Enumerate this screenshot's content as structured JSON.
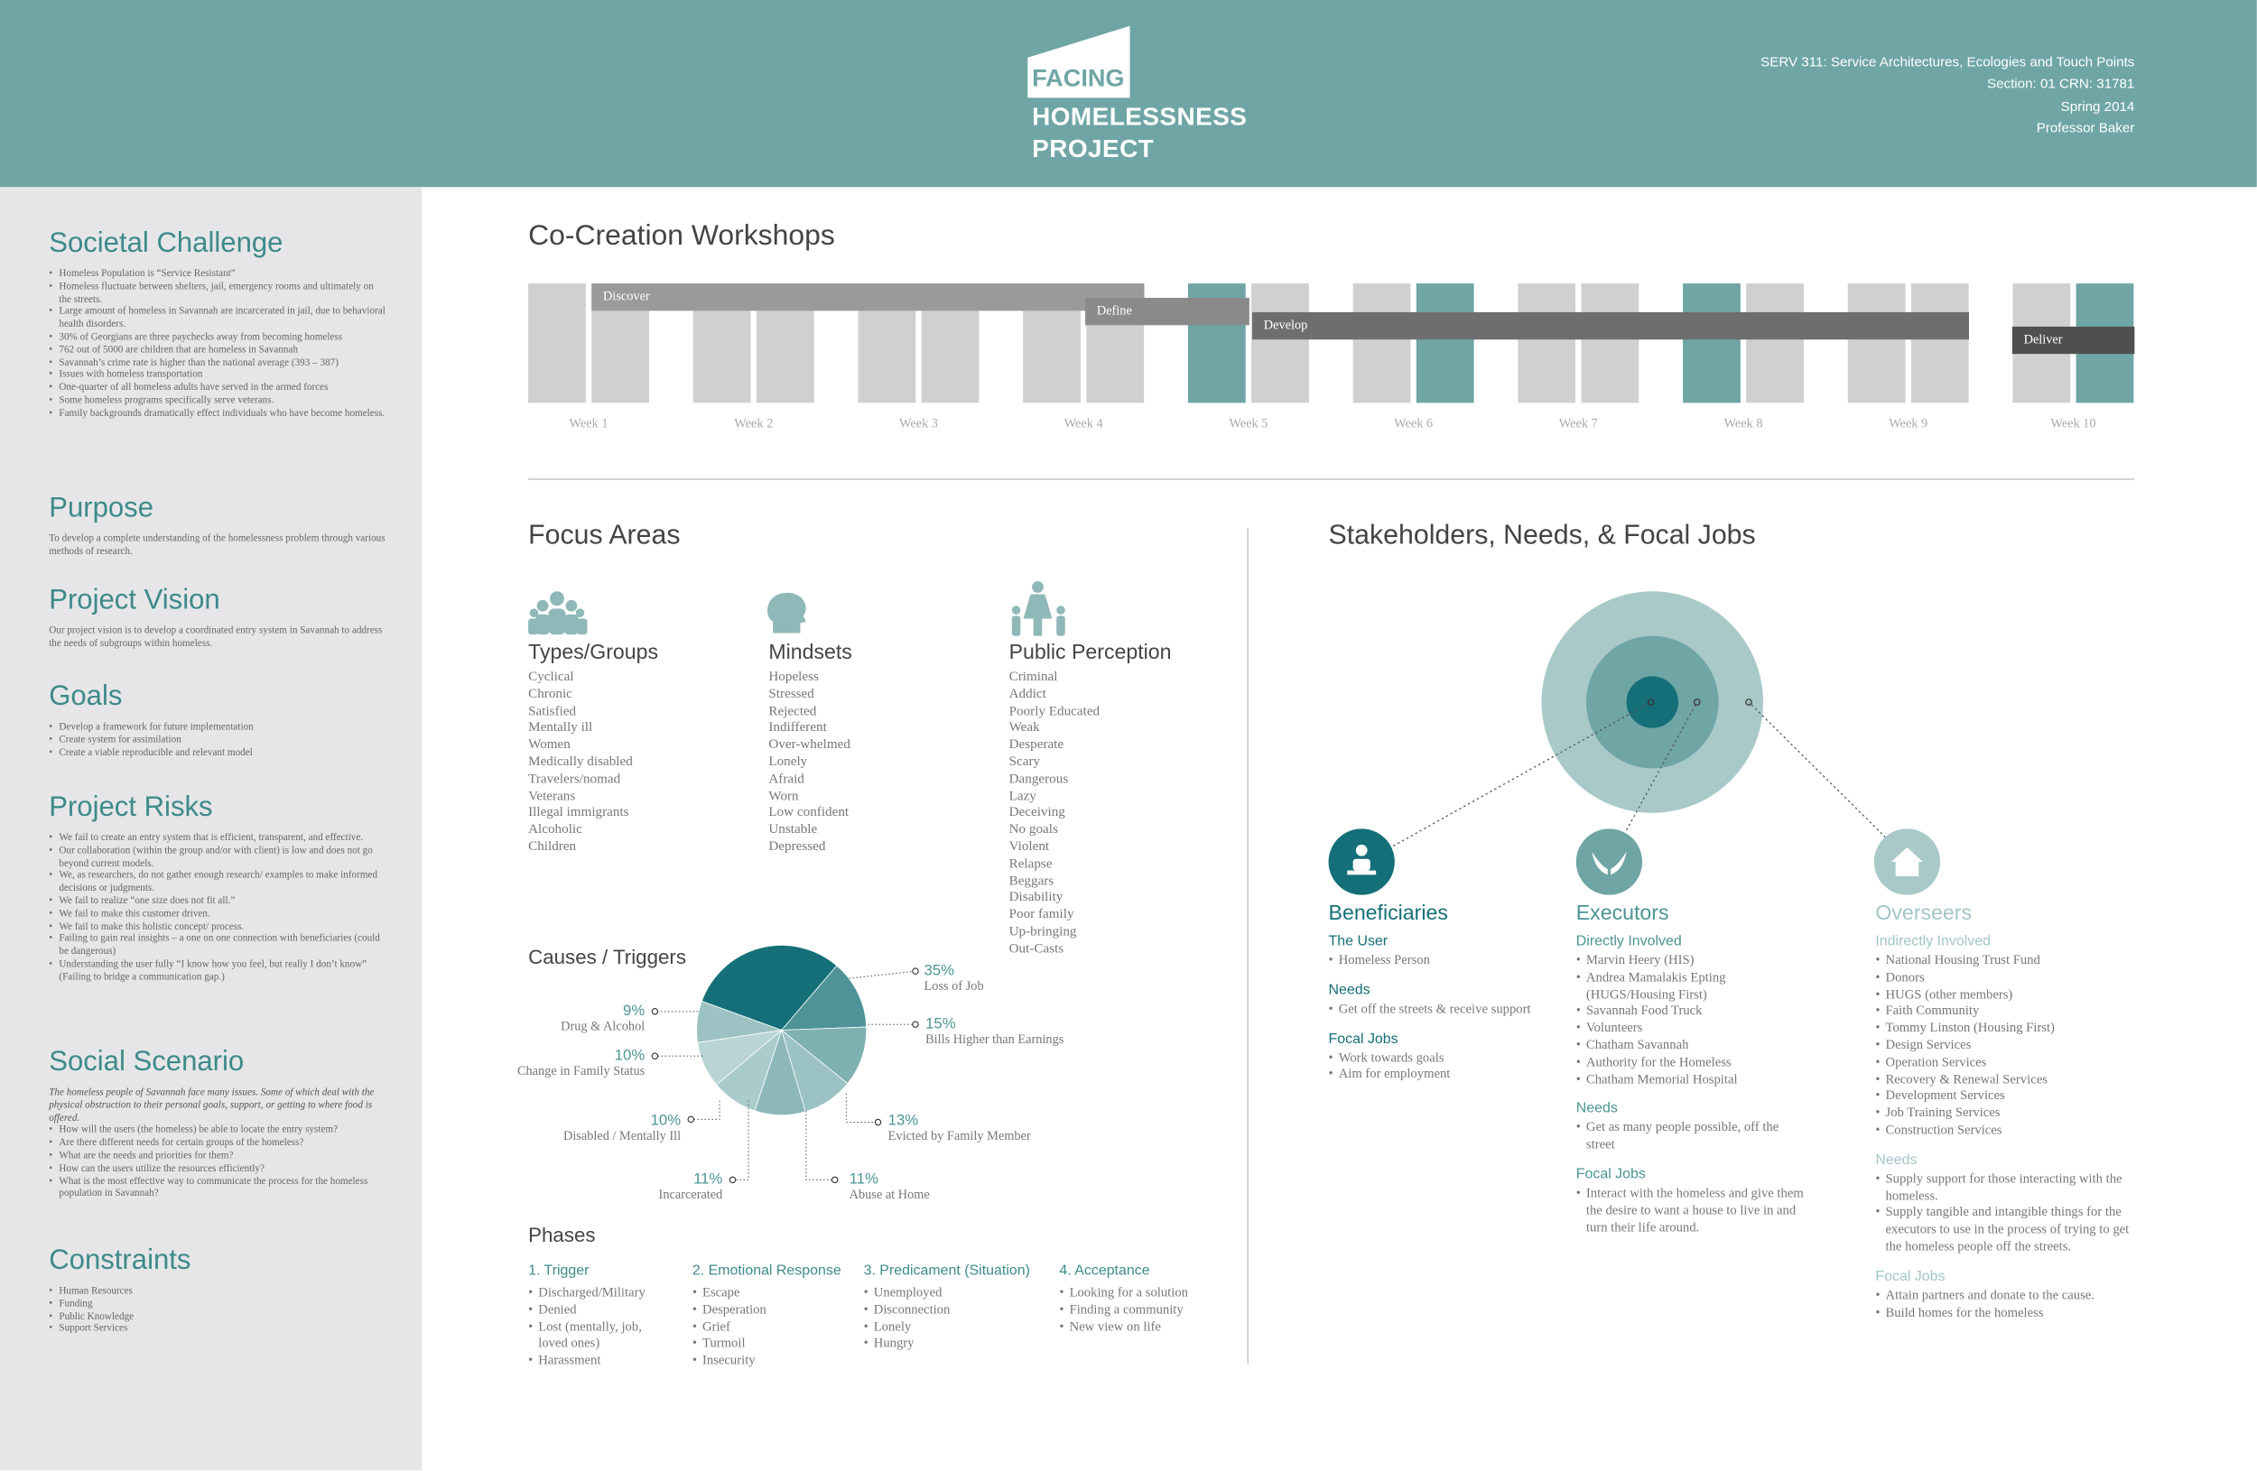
{
  "header": {
    "logo": [
      "FACING",
      "HOMELESSNESS",
      "PROJECT"
    ],
    "course_info": [
      "SERV 311: Service Architectures, Ecologies and Touch Points",
      "Section: 01 CRN: 31781",
      "Spring 2014",
      "Professor Baker"
    ]
  },
  "sidebar": {
    "sections": [
      {
        "title": "Societal Challenge",
        "items": [
          "Homeless Population is “Service Resistant”",
          "Homeless fluctuate between shelters, jail, emergency rooms and ultimately on the streets.",
          "Large amount of homeless in Savannah are incarcerated in jail, due to behavioral health disorders.",
          "30% of Georgians are three paychecks away from becoming homeless",
          "762 out of 5000 are children that are homeless in Savannah",
          "Savannah’s crime rate is higher than the national average (393 – 387)",
          "Issues with homeless transportation",
          "One-quarter of all homeless adults have served in the armed forces",
          "Some homeless programs specifically serve veterans.",
          "Family backgrounds dramatically effect individuals who have become homeless."
        ]
      },
      {
        "title": "Purpose",
        "text": "To develop a complete understanding of the homelessness problem through various methods of research."
      },
      {
        "title": "Project Vision",
        "text": "Our project vision is to develop a coordinated entry system in Savannah to address the needs of subgroups within homeless."
      },
      {
        "title": "Goals",
        "items": [
          "Develop a framework for future implementation",
          "Create system for assimilation",
          "Create a viable reproducible and relevant model"
        ]
      },
      {
        "title": "Project Risks",
        "items": [
          "We fail to create an entry system that is efficient, transparent, and effective.",
          "Our collaboration (within the group and/or with client) is low and does not go beyond current models.",
          "We, as researchers, do not gather enough research/ examples to make informed decisions or judgments.",
          "We fail to realize “one size does not fit all.”",
          "We fail to make this customer driven.",
          "We fail to make this holistic concept/ process.",
          "Failing to gain real insights – a one on one connection with beneficiaries (could be dangerous)",
          "Understanding the user fully “I know how you feel, but really I don’t know” (Failing to bridge a communication gap.)"
        ]
      },
      {
        "title": "Social Scenario",
        "intro": "The homeless people of Savannah face many issues. Some of which deal with the physical obstruction to their personal goals, support, or getting to where food is offered.",
        "items": [
          "How will the users (the homeless) be able to locate the entry system?",
          "Are there different needs for certain groups of the homeless?",
          "What are the needs and priorities for them?",
          "How can the users utilize the resources efficiently?",
          "What is the most effective way to communicate the process for the homeless population in Savannah?"
        ]
      },
      {
        "title": "Constraints",
        "items": [
          "Human Resources",
          "Funding",
          "Public Knowledge",
          "Support Services"
        ]
      }
    ]
  },
  "workshops": {
    "title": "Co-Creation Workshops",
    "weeks": [
      "Week 1",
      "Week 2",
      "Week 3",
      "Week 4",
      "Week 5",
      "Week 6",
      "Week 7",
      "Week 8",
      "Week 9",
      "Week 10"
    ],
    "phases": [
      "Discover",
      "Define",
      "Develop",
      "Deliver"
    ]
  },
  "focus_areas": {
    "title": "Focus Areas",
    "columns": [
      {
        "title": "Types/Groups",
        "items": [
          "Cyclical",
          "Chronic",
          "Satisfied",
          "Mentally ill",
          "Women",
          "Medically disabled",
          "Travelers/nomad",
          "Veterans",
          "Illegal immigrants",
          "Alcoholic",
          "Children"
        ]
      },
      {
        "title": "Mindsets",
        "items": [
          "Hopeless",
          "Stressed",
          "Rejected",
          "Indifferent",
          "Over-whelmed",
          "Lonely",
          "Afraid",
          "Worn",
          "Low confident",
          "Unstable",
          "Depressed"
        ]
      },
      {
        "title": "Public Perception",
        "items": [
          "Criminal",
          "Addict",
          "Poorly Educated",
          "Weak",
          "Desperate",
          "Scary",
          "Dangerous",
          "Lazy",
          "Deceiving",
          "No goals",
          "Violent",
          "Relapse",
          "Beggars",
          "Disability",
          "Poor family",
          "Up-bringing",
          "Out-Casts"
        ]
      }
    ]
  },
  "chart_data": {
    "type": "pie",
    "title": "Causes / Triggers",
    "categories": [
      "Loss of Job",
      "Bills Higher than Earnings",
      "Evicted by Family Member",
      "Abuse at Home",
      "Incarcerated",
      "Disabled / Mentally Ill",
      "Change in Family Status",
      "Drug & Alcohol"
    ],
    "values": [
      35,
      15,
      13,
      11,
      11,
      10,
      10,
      9
    ],
    "value_labels": [
      "35%",
      "15%",
      "13%",
      "11%",
      "11%",
      "10%",
      "10%",
      "9%"
    ],
    "colors": [
      "#146f78",
      "#4f9398",
      "#7fb0b2",
      "#9cc3c4",
      "#8cb8ba",
      "#a9cbcc",
      "#b8d4d5",
      "#9dc2c3"
    ]
  },
  "phases": {
    "title": "Phases",
    "columns": [
      {
        "title": "1. Trigger",
        "items": [
          "Discharged/Military",
          "Denied",
          "Lost (mentally, job, loved ones)",
          "Harassment"
        ]
      },
      {
        "title": "2. Emotional Response",
        "items": [
          "Escape",
          "Desperation",
          "Grief",
          "Turmoil",
          "Insecurity"
        ]
      },
      {
        "title": "3. Predicament (Situation)",
        "items": [
          "Unemployed",
          "Disconnection",
          "Lonely",
          "Hungry"
        ]
      },
      {
        "title": "4. Acceptance",
        "items": [
          "Looking for a solution",
          "Finding a community",
          "New view on life"
        ]
      }
    ]
  },
  "stakeholders": {
    "title": "Stakeholders, Needs, & Focal Jobs",
    "columns": [
      {
        "title": "Beneficiaries",
        "groups": [
          {
            "title": "The User",
            "items": [
              "Homeless Person"
            ]
          },
          {
            "title": "Needs",
            "items": [
              "Get off the streets & receive support"
            ]
          },
          {
            "title": "Focal Jobs",
            "items": [
              "Work towards goals",
              "Aim for employment"
            ]
          }
        ]
      },
      {
        "title": "Executors",
        "groups": [
          {
            "title": "Directly Involved",
            "items": [
              "Marvin Heery (HIS)",
              "Andrea Mamalakis Epting (HUGS/Housing First)",
              "Savannah Food Truck",
              "Volunteers",
              "Chatham Savannah",
              "Authority for the Homeless",
              "Chatham Memorial Hospital"
            ]
          },
          {
            "title": "Needs",
            "items": [
              "Get as many people possible, off the street"
            ]
          },
          {
            "title": "Focal Jobs",
            "items": [
              "Interact with the homeless and give them the desire to want a house to live in and turn their life around."
            ]
          }
        ]
      },
      {
        "title": "Overseers",
        "groups": [
          {
            "title": "Indirectly Involved",
            "items": [
              "National Housing Trust Fund",
              "Donors",
              "HUGS (other members)",
              "Faith Community",
              "Tommy Linston (Housing First)",
              "Design Services",
              "Operation Services",
              "Recovery & Renewal Services",
              "Development Services",
              "Job Training Services",
              "Construction Services"
            ]
          },
          {
            "title": "Needs",
            "items": [
              "Supply support for those interacting with the homeless.",
              "Supply tangible and intangible things for the executors to use in the process of trying to get the homeless people off the streets."
            ]
          },
          {
            "title": "Focal Jobs",
            "items": [
              "Attain partners and donate to the cause.",
              "Build homes for the homeless"
            ]
          }
        ]
      }
    ]
  }
}
